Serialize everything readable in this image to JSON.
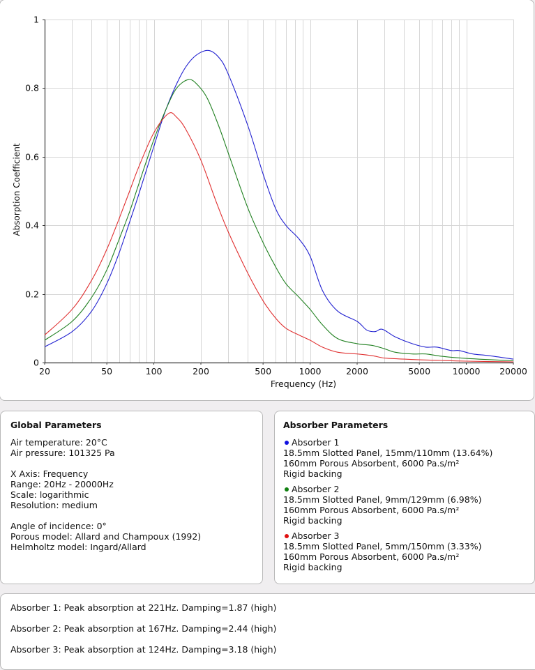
{
  "chart_data": {
    "type": "line",
    "title": "",
    "xlabel": "Frequency (Hz)",
    "ylabel": "Absorption Coefficient",
    "xscale": "log",
    "xlim": [
      20,
      20000
    ],
    "ylim": [
      0,
      1
    ],
    "grid": true,
    "x_tick_labels": [
      "20",
      "50",
      "100",
      "200",
      "500",
      "1000",
      "2000",
      "5000",
      "10000",
      "20000"
    ],
    "x_tick_values": [
      20,
      50,
      100,
      200,
      500,
      1000,
      2000,
      5000,
      10000,
      20000
    ],
    "x_minor_grid": [
      30,
      40,
      60,
      70,
      80,
      90,
      300,
      400,
      600,
      700,
      800,
      900,
      3000,
      4000,
      6000,
      7000,
      8000,
      9000
    ],
    "y_tick_labels": [
      "0",
      "0.2",
      "0.4",
      "0.6",
      "0.8",
      "1"
    ],
    "y_tick_values": [
      0,
      0.2,
      0.4,
      0.6,
      0.8,
      1
    ],
    "series": [
      {
        "name": "Absorber 1",
        "color": "#2020d0",
        "x": [
          20,
          30,
          40,
          50,
          60,
          70,
          80,
          100,
          120,
          150,
          180,
          221,
          260,
          300,
          400,
          500,
          600,
          700,
          850,
          1000,
          1200,
          1500,
          2000,
          2300,
          2600,
          2900,
          3500,
          4500,
          5500,
          6500,
          8000,
          9000,
          11000,
          14000,
          20000
        ],
        "y": [
          0.046,
          0.09,
          0.15,
          0.23,
          0.32,
          0.41,
          0.49,
          0.63,
          0.74,
          0.84,
          0.89,
          0.91,
          0.89,
          0.84,
          0.69,
          0.55,
          0.45,
          0.4,
          0.36,
          0.31,
          0.21,
          0.15,
          0.12,
          0.095,
          0.09,
          0.097,
          0.075,
          0.055,
          0.045,
          0.045,
          0.035,
          0.035,
          0.025,
          0.02,
          0.01
        ]
      },
      {
        "name": "Absorber 2",
        "color": "#208020",
        "x": [
          20,
          30,
          40,
          50,
          60,
          70,
          80,
          100,
          120,
          140,
          167,
          190,
          220,
          260,
          300,
          400,
          500,
          600,
          700,
          850,
          1000,
          1200,
          1500,
          2000,
          2500,
          3000,
          3500,
          4500,
          5500,
          7000,
          10000,
          20000
        ],
        "y": [
          0.065,
          0.12,
          0.19,
          0.27,
          0.36,
          0.44,
          0.52,
          0.65,
          0.74,
          0.8,
          0.825,
          0.81,
          0.77,
          0.69,
          0.61,
          0.45,
          0.35,
          0.28,
          0.23,
          0.19,
          0.155,
          0.11,
          0.07,
          0.055,
          0.05,
          0.04,
          0.03,
          0.025,
          0.025,
          0.018,
          0.012,
          0.005
        ]
      },
      {
        "name": "Absorber 3",
        "color": "#e03030",
        "x": [
          20,
          30,
          40,
          50,
          60,
          70,
          80,
          100,
          124,
          140,
          160,
          200,
          250,
          300,
          400,
          500,
          600,
          700,
          850,
          1000,
          1200,
          1500,
          2000,
          2500,
          3000,
          4000,
          5000,
          7000,
          10000,
          20000
        ],
        "y": [
          0.08,
          0.155,
          0.24,
          0.33,
          0.42,
          0.5,
          0.57,
          0.67,
          0.726,
          0.715,
          0.68,
          0.59,
          0.47,
          0.38,
          0.26,
          0.18,
          0.13,
          0.1,
          0.08,
          0.065,
          0.045,
          0.03,
          0.025,
          0.02,
          0.013,
          0.01,
          0.008,
          0.006,
          0.004,
          0.002
        ]
      }
    ]
  },
  "global_parameters": {
    "title": "Global Parameters",
    "air_temperature": "Air temperature: 20°C",
    "air_pressure": "Air pressure: 101325 Pa",
    "x_axis": "X Axis: Frequency",
    "range": "Range: 20Hz - 20000Hz",
    "scale": "Scale: logarithmic",
    "resolution": "Resolution: medium",
    "angle": "Angle of incidence: 0°",
    "porous_model": "Porous model: Allard and Champoux (1992)",
    "helmholtz_model": "Helmholtz model: Ingard/Allard"
  },
  "absorber_parameters": {
    "title": "Absorber Parameters",
    "absorbers": [
      {
        "name": "Absorber 1",
        "color": "#1010e0",
        "panel": "18.5mm Slotted Panel, 15mm/110mm (13.64%)",
        "porous": "160mm Porous Absorbent, 6000 Pa.s/m²",
        "backing": "Rigid backing"
      },
      {
        "name": "Absorber 2",
        "color": "#108010",
        "panel": "18.5mm Slotted Panel, 9mm/129mm (6.98%)",
        "porous": "160mm Porous Absorbent, 6000 Pa.s/m²",
        "backing": "Rigid backing"
      },
      {
        "name": "Absorber 3",
        "color": "#e01010",
        "panel": "18.5mm Slotted Panel, 5mm/150mm (3.33%)",
        "porous": "160mm Porous Absorbent, 6000 Pa.s/m²",
        "backing": "Rigid backing"
      }
    ]
  },
  "results": [
    "Absorber 1: Peak absorption at 221Hz. Damping=1.87 (high)",
    "Absorber 2: Peak absorption at 167Hz. Damping=2.44 (high)",
    "Absorber 3: Peak absorption at 124Hz. Damping=3.18 (high)"
  ]
}
